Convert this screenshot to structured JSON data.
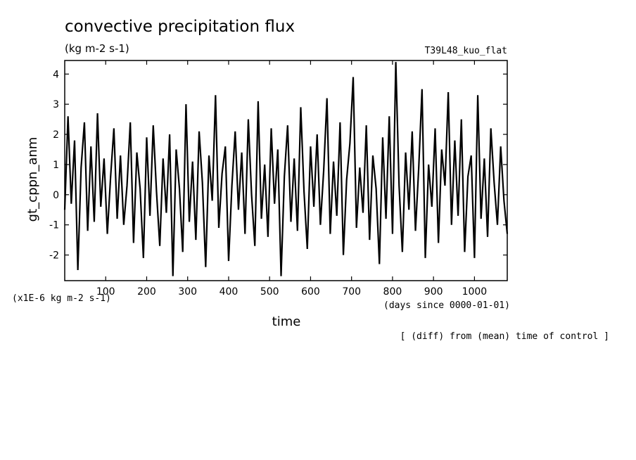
{
  "header": {
    "title": "convective precipitation flux",
    "units": "(kg m-2 s-1)",
    "experiment": "T39L48_kuo_flat"
  },
  "footer": {
    "scale_note": "(x1E-6 kg m-2 s-1)",
    "x_unit_note": "(days since 0000-01-01)",
    "diff_note": "[ (diff) from (mean) time of control ]"
  },
  "chart_data": {
    "type": "line",
    "title": "convective precipitation flux",
    "subtitle": "(kg m-2 s-1)",
    "xlabel": "time",
    "ylabel": "gt_cppn_anm",
    "xlim": [
      0,
      1080
    ],
    "ylim": [
      -2.85,
      4.45
    ],
    "xticks": [
      100,
      200,
      300,
      400,
      500,
      600,
      700,
      800,
      900,
      1000
    ],
    "yticks": [
      -2,
      -1,
      0,
      1,
      2,
      3,
      4
    ],
    "grid": false,
    "series": [
      {
        "x": [
          0,
          8,
          16,
          24,
          32,
          40,
          48,
          56,
          64,
          72,
          80,
          88,
          96,
          104,
          112,
          120,
          128,
          136,
          144,
          152,
          160,
          168,
          176,
          184,
          192,
          200,
          208,
          216,
          224,
          232,
          240,
          248,
          256,
          264,
          272,
          280,
          288,
          296,
          304,
          312,
          320,
          328,
          336,
          344,
          352,
          360,
          368,
          376,
          384,
          392,
          400,
          408,
          416,
          424,
          432,
          440,
          448,
          456,
          464,
          472,
          480,
          488,
          496,
          504,
          512,
          520,
          528,
          536,
          544,
          552,
          560,
          568,
          576,
          584,
          592,
          600,
          608,
          616,
          624,
          632,
          640,
          648,
          656,
          664,
          672,
          680,
          688,
          696,
          704,
          712,
          720,
          728,
          736,
          744,
          752,
          760,
          768,
          776,
          784,
          792,
          800,
          808,
          816,
          824,
          832,
          840,
          848,
          856,
          864,
          872,
          880,
          888,
          896,
          904,
          912,
          920,
          928,
          936,
          944,
          952,
          960,
          968,
          976,
          984,
          992,
          1000,
          1008,
          1016,
          1024,
          1032,
          1040,
          1048,
          1056,
          1064,
          1072,
          1080
        ],
        "values": [
          -0.5,
          2.6,
          -0.3,
          1.8,
          -2.5,
          0.9,
          2.4,
          -1.2,
          1.6,
          -0.9,
          2.7,
          -0.4,
          1.2,
          -1.3,
          0.6,
          2.2,
          -0.8,
          1.3,
          -1.0,
          0.3,
          2.4,
          -1.6,
          1.4,
          0.2,
          -2.1,
          1.9,
          -0.7,
          2.3,
          0.1,
          -1.7,
          1.2,
          -0.6,
          2.0,
          -2.7,
          1.5,
          0.2,
          -1.9,
          3.0,
          -0.9,
          1.1,
          -1.5,
          2.1,
          0.4,
          -2.4,
          1.3,
          -0.2,
          3.3,
          -1.1,
          0.7,
          1.6,
          -2.2,
          0.3,
          2.1,
          -0.5,
          1.4,
          -1.3,
          2.5,
          0.0,
          -1.7,
          3.1,
          -0.8,
          1.0,
          -1.4,
          2.2,
          -0.3,
          1.5,
          -2.7,
          0.6,
          2.3,
          -0.9,
          1.2,
          -1.2,
          2.9,
          0.1,
          -1.8,
          1.6,
          -0.4,
          2.0,
          -1.0,
          0.8,
          3.2,
          -1.3,
          1.1,
          -0.7,
          2.4,
          -2.0,
          0.5,
          1.7,
          3.9,
          -1.1,
          0.9,
          -0.6,
          2.3,
          -1.5,
          1.3,
          0.2,
          -2.3,
          1.9,
          -0.8,
          2.6,
          -1.3,
          4.4,
          0.3,
          -1.9,
          1.4,
          -0.5,
          2.1,
          -1.2,
          0.9,
          3.5,
          -2.1,
          1.0,
          -0.4,
          2.2,
          -1.6,
          1.5,
          0.3,
          3.4,
          -1.0,
          1.8,
          -0.7,
          2.5,
          -1.9,
          0.6,
          1.3,
          -2.1,
          3.3,
          -0.8,
          1.2,
          -1.4,
          2.2,
          0.4,
          -1.0,
          1.6,
          -0.2,
          -1.3
        ]
      }
    ]
  }
}
